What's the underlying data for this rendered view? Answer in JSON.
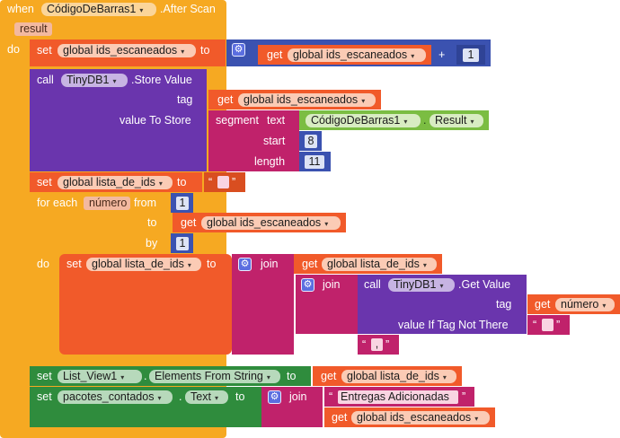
{
  "event": {
    "when": "when",
    "component": "CódigoDeBarras1",
    "event_name": ".After Scan",
    "param": "result",
    "do": "do"
  },
  "b1": {
    "set": "set",
    "var": "global ids_escaneados",
    "to": "to",
    "get": "get",
    "get_var": "global ids_escaneados",
    "op": "+",
    "num": "1"
  },
  "b2": {
    "call": "call",
    "component": "TinyDB1",
    "method": ".Store Value",
    "tag_label": "tag",
    "tag_get": "get",
    "tag_var": "global ids_escaneados",
    "value_label": "value To Store",
    "segment": "segment",
    "text_label": "text",
    "comp": "CódigoDeBarras1",
    "dot": ".",
    "prop": "Result",
    "start_label": "start",
    "start_num": "8",
    "length_label": "length",
    "length_num": "11"
  },
  "b3": {
    "set": "set",
    "var": "global lista_de_ids",
    "to": "to",
    "q_open": "“",
    "q_close": "”"
  },
  "loop": {
    "for_each": "for each",
    "var": "número",
    "from": "from",
    "from_num": "1",
    "to": "to",
    "to_get": "get",
    "to_var": "global ids_escaneados",
    "by": "by",
    "by_num": "1",
    "do": "do"
  },
  "inner": {
    "set": "set",
    "var": "global lista_de_ids",
    "to": "to",
    "join": "join",
    "get": "get",
    "get_var": "global lista_de_ids",
    "join2": "join",
    "call": "call",
    "component": "TinyDB1",
    "method": ".Get Value",
    "tag_label": "tag",
    "tag_get": "get",
    "tag_var": "número",
    "value_label": "value If Tag Not There",
    "q_open": "“",
    "q_close": "”",
    "sep_open": "“",
    "sep": ",",
    "sep_close": "”"
  },
  "b5": {
    "set": "set",
    "component": "List_View1",
    "dot": ".",
    "prop": "Elements From String",
    "to": "to",
    "get": "get",
    "get_var": "global lista_de_ids"
  },
  "b6": {
    "set": "set",
    "component": "pacotes_contados",
    "dot": ".",
    "prop": "Text",
    "to": "to",
    "join": "join",
    "q_open": "“",
    "text": "Entregas Adicionadas",
    "q_close": "”",
    "get": "get",
    "get_var": "global ids_escaneados"
  },
  "icons": {
    "dropdown": "▾",
    "gear": "⚙"
  }
}
